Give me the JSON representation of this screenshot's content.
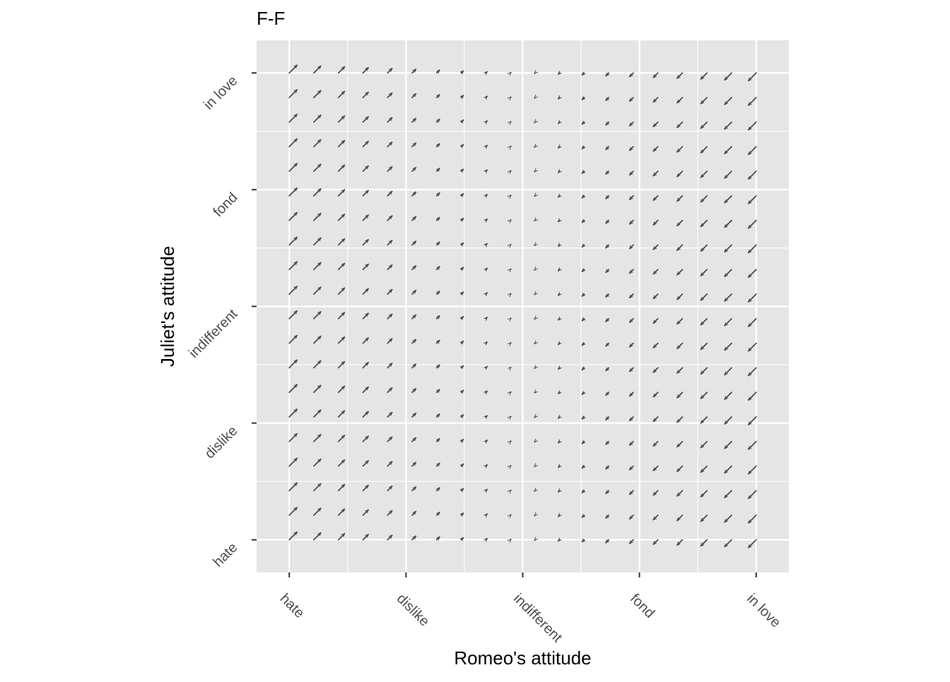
{
  "chart_data": {
    "type": "quiver",
    "title": "F-F",
    "xlabel": "Romeo's attitude",
    "ylabel": "Juliet's attitude",
    "x_ticks": [
      {
        "value": -1.0,
        "label": "hate"
      },
      {
        "value": -0.5,
        "label": "dislike"
      },
      {
        "value": 0.0,
        "label": "indifferent"
      },
      {
        "value": 0.5,
        "label": "fond"
      },
      {
        "value": 1.0,
        "label": "in love"
      }
    ],
    "y_ticks": [
      {
        "value": -1.0,
        "label": "hate"
      },
      {
        "value": -0.5,
        "label": "dislike"
      },
      {
        "value": 0.0,
        "label": "indifferent"
      },
      {
        "value": 0.5,
        "label": "fond"
      },
      {
        "value": 1.0,
        "label": "in love"
      }
    ],
    "xlim": [
      -1.14,
      1.14
    ],
    "ylim": [
      -1.14,
      1.14
    ],
    "grid": true,
    "grid_x": [
      -1,
      -0.5,
      0,
      0.5,
      1
    ],
    "grid_y": [
      -1,
      -0.5,
      0,
      0.5,
      1
    ],
    "field": {
      "x_range": [
        -1,
        1
      ],
      "y_range": [
        -1,
        1
      ],
      "n": 20,
      "dx": "-x",
      "dy": "-x"
    },
    "colors": {
      "panel": "#e5e5e5",
      "grid": "#ffffff",
      "arrow": "#4d4d4d",
      "tick": "#333333"
    }
  }
}
